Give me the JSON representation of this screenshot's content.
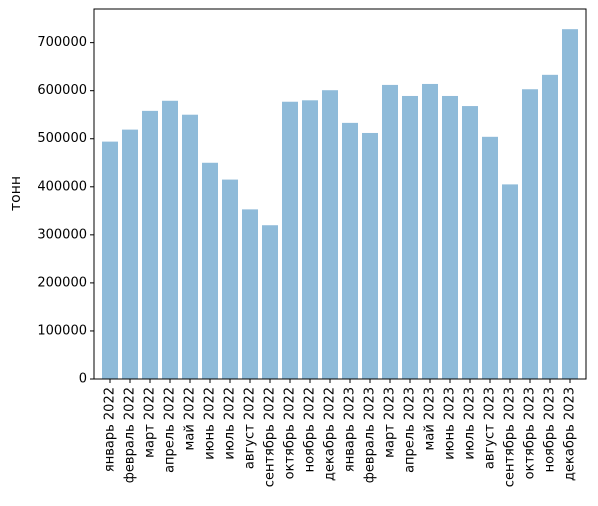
{
  "chart_data": {
    "type": "bar",
    "title": "",
    "xlabel": "",
    "ylabel": "тонн",
    "ylim": [
      0,
      770000
    ],
    "yticks": [
      0,
      100000,
      200000,
      300000,
      400000,
      500000,
      600000,
      700000
    ],
    "ytick_labels": [
      "0",
      "100000",
      "200000",
      "300000",
      "400000",
      "500000",
      "600000",
      "700000"
    ],
    "grid": false,
    "legend": "none",
    "bar_color": "#1f77b4",
    "bar_opacity": 0.5,
    "categories": [
      "январь 2022",
      "февраль 2022",
      "март 2022",
      "апрель 2022",
      "май 2022",
      "июнь 2022",
      "июль 2022",
      "август 2022",
      "сентябрь 2022",
      "октябрь 2022",
      "ноябрь 2022",
      "декабрь 2022",
      "январь 2023",
      "февраль 2023",
      "март 2023",
      "апрель 2023",
      "май 2023",
      "июнь 2023",
      "июль 2023",
      "август 2023",
      "сентябрь 2023",
      "октябрь 2023",
      "ноябрь 2023",
      "декабрь 2023"
    ],
    "values": [
      494000,
      519000,
      558000,
      579000,
      550000,
      450000,
      415000,
      353000,
      320000,
      577000,
      580000,
      601000,
      533000,
      512000,
      612000,
      589000,
      614000,
      589000,
      568000,
      504000,
      405000,
      603000,
      633000,
      728000
    ]
  }
}
